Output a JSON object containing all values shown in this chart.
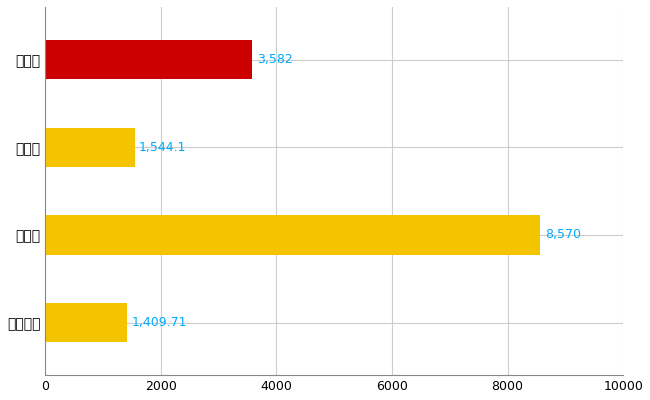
{
  "categories": [
    "諫早市",
    "県平均",
    "県最大",
    "全国平均"
  ],
  "values": [
    3582,
    1544.1,
    8570,
    1409.71
  ],
  "bar_colors": [
    "#cc0000",
    "#f5c400",
    "#f5c400",
    "#f5c400"
  ],
  "bar_labels": [
    "3,582",
    "1,544.1",
    "8,570",
    "1,409.71"
  ],
  "xlim": [
    0,
    10000
  ],
  "xticks": [
    0,
    2000,
    4000,
    6000,
    8000,
    10000
  ],
  "background_color": "#ffffff",
  "grid_color": "#cccccc",
  "label_color": "#00aaff",
  "bar_height": 0.45,
  "figsize": [
    6.5,
    4.0
  ],
  "dpi": 100
}
